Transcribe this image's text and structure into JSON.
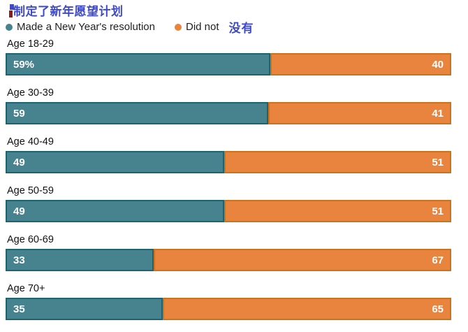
{
  "title": "制定了新年愿望计划",
  "legend": {
    "series1_label": "Made a New Year's resolution",
    "series2_label": "Did not",
    "series2_label_zh": "没有"
  },
  "colors": {
    "title_accent": "#3e4ac6",
    "teal_fill": "#47828f",
    "teal_border": "#1e6372",
    "orange_fill": "#e8843e",
    "orange_border": "#c9731c",
    "label_text": "#111111",
    "value_text": "#ffffff"
  },
  "chart_data": {
    "type": "bar",
    "orientation": "horizontal-stacked",
    "title": "制定了新年愿望计划",
    "categories": [
      "Age 18-29",
      "Age 30-39",
      "Age 40-49",
      "Age 50-59",
      "Age 60-69",
      "Age 70+"
    ],
    "series": [
      {
        "name": "Made a New Year's resolution",
        "color": "#47828f",
        "values": [
          59,
          59,
          49,
          49,
          33,
          35
        ]
      },
      {
        "name": "Did not",
        "color": "#e8843e",
        "values": [
          40,
          41,
          51,
          51,
          67,
          65
        ]
      }
    ],
    "value_labels": [
      [
        "59%",
        "40"
      ],
      [
        "59",
        "41"
      ],
      [
        "49",
        "51"
      ],
      [
        "49",
        "51"
      ],
      [
        "33",
        "67"
      ],
      [
        "35",
        "65"
      ]
    ],
    "xlim": [
      0,
      100
    ],
    "grid": false,
    "legend_position": "top-left"
  }
}
